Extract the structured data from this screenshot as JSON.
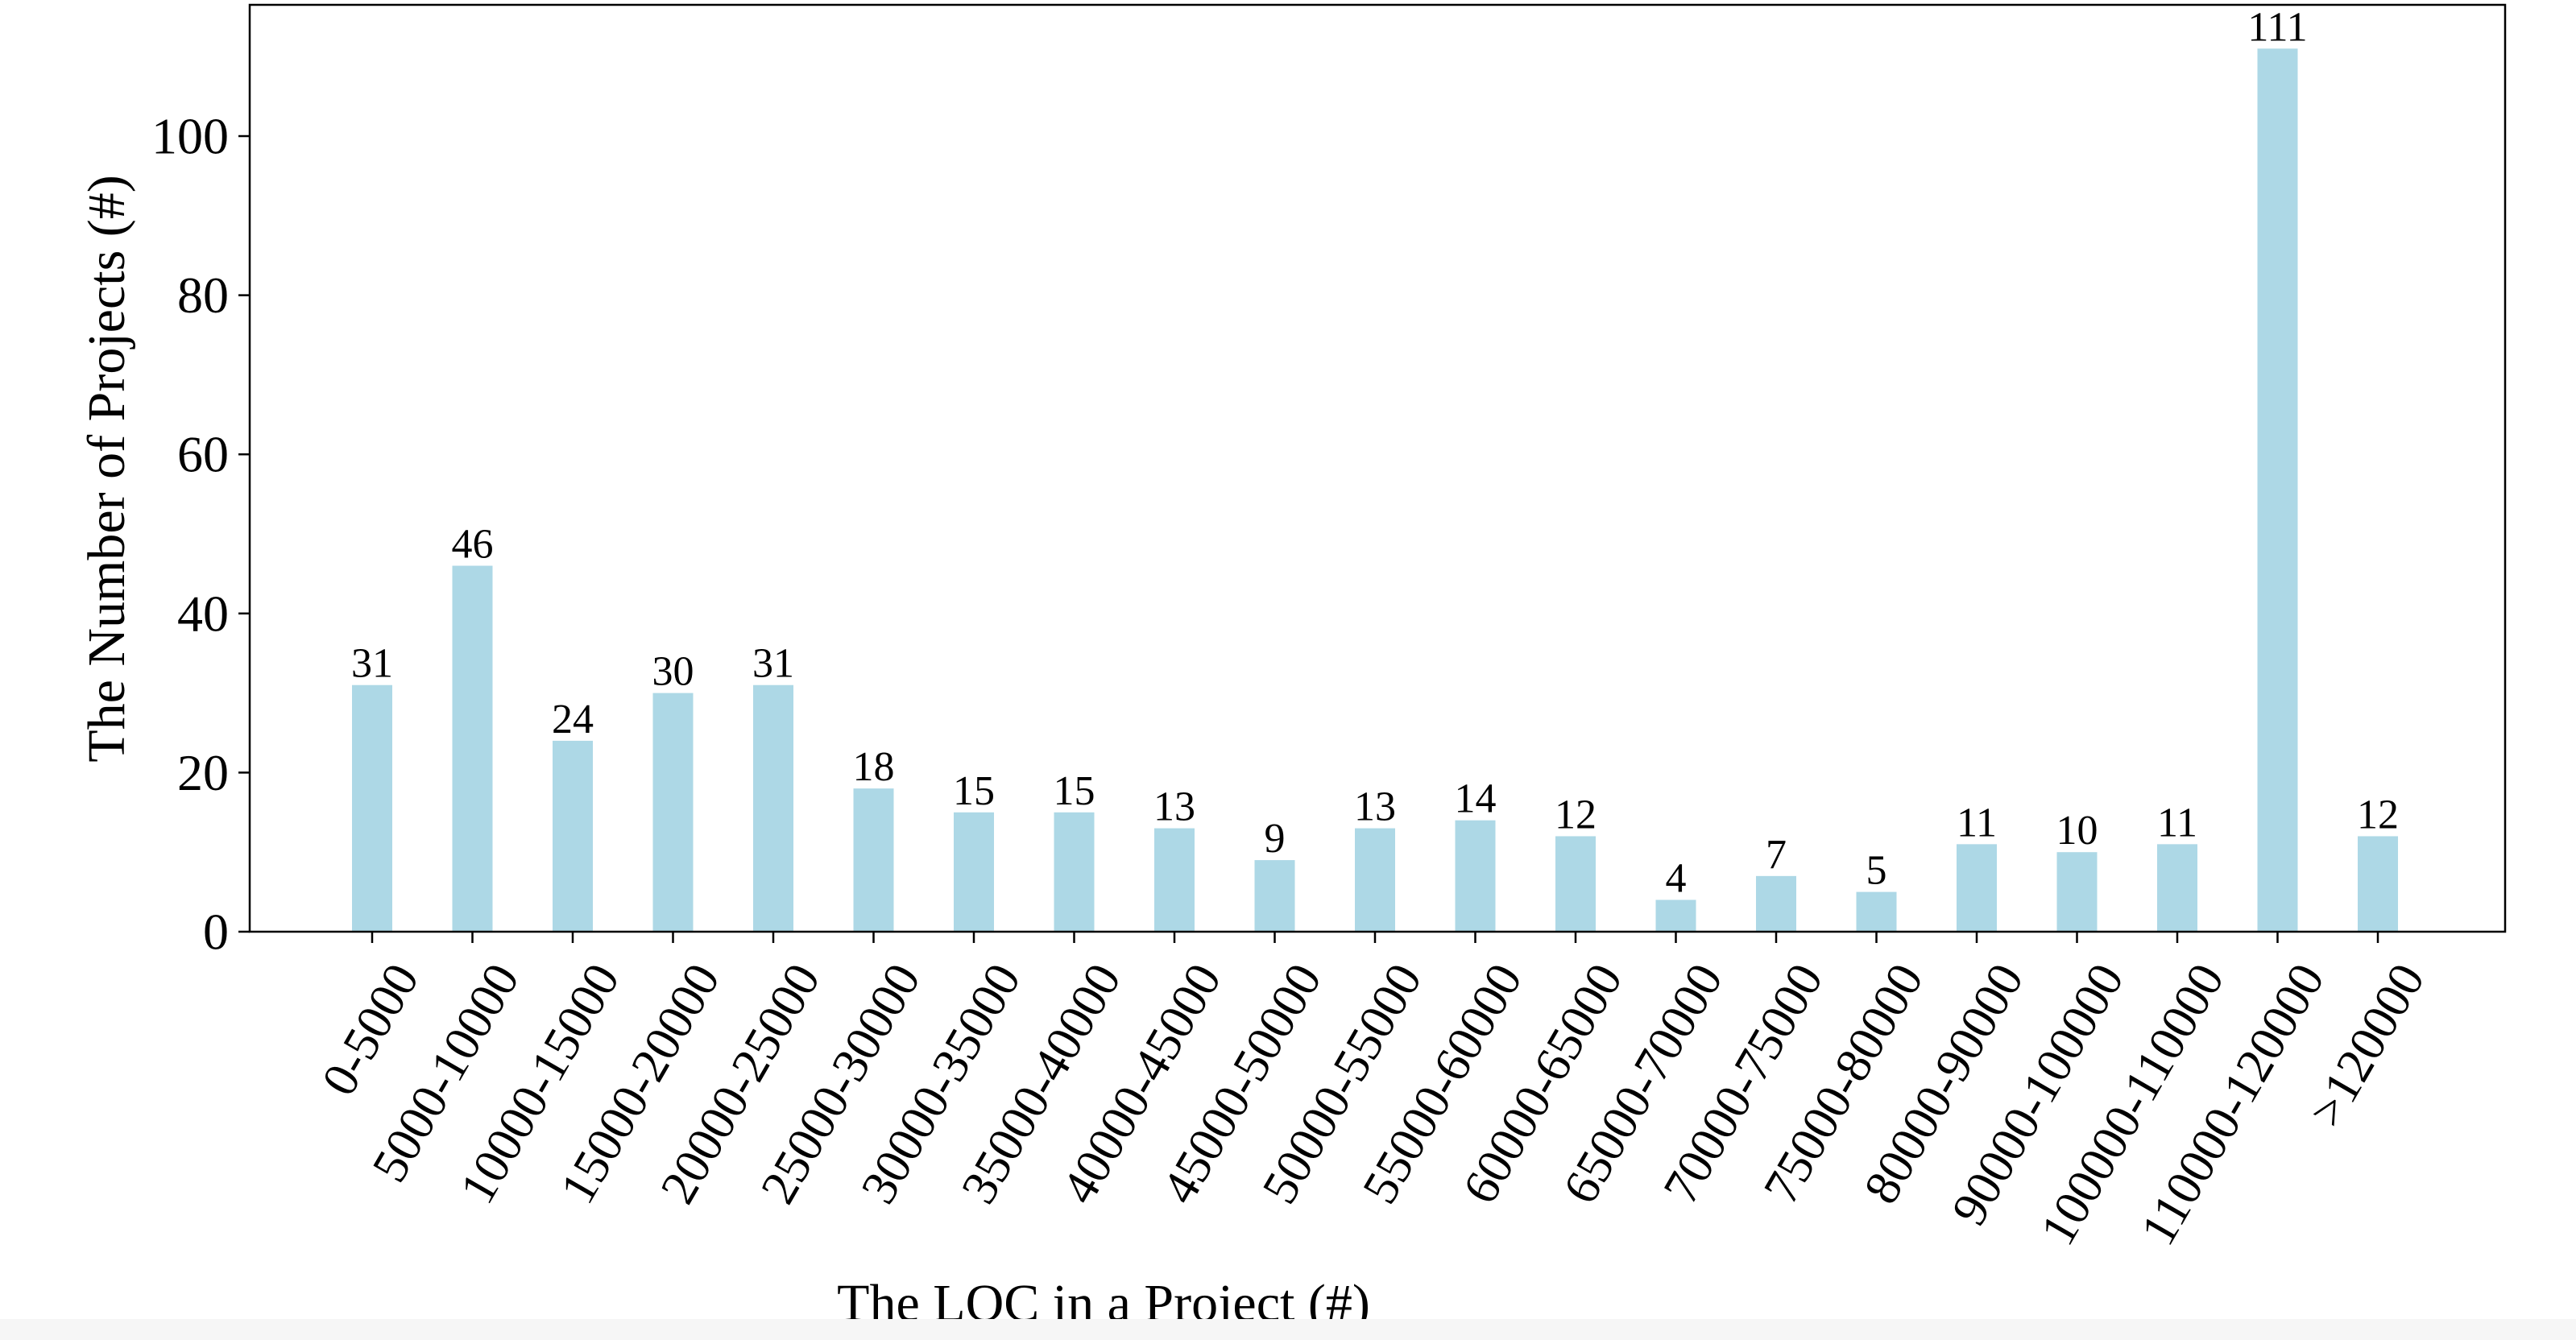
{
  "chart_data": {
    "type": "bar",
    "title": "",
    "xlabel": "The LOC in a Project (#)",
    "ylabel": "The Number of Projects (#)",
    "categories": [
      "0-5000",
      "5000-10000",
      "10000-15000",
      "15000-20000",
      "20000-25000",
      "25000-30000",
      "30000-35000",
      "35000-40000",
      "40000-45000",
      "45000-50000",
      "50000-55000",
      "55000-60000",
      "60000-65000",
      "65000-70000",
      "70000-75000",
      "75000-80000",
      "80000-90000",
      "90000-100000",
      "100000-110000",
      "110000-120000",
      ">120000"
    ],
    "values": [
      31,
      46,
      24,
      30,
      31,
      18,
      15,
      15,
      13,
      9,
      13,
      14,
      12,
      4,
      7,
      5,
      11,
      10,
      11,
      111,
      12
    ],
    "data_labels": [
      "31",
      "46",
      "24",
      "30",
      "31",
      "18",
      "15",
      "15",
      "13",
      "9",
      "13",
      "14",
      "12",
      "4",
      "7",
      "5",
      "11",
      "10",
      "11",
      "111",
      "12"
    ],
    "ylim": [
      0,
      116.5
    ],
    "yticks": [
      0,
      20,
      40,
      60,
      80,
      100
    ],
    "ytick_labels": [
      "0",
      "20",
      "40",
      "60",
      "80",
      "100"
    ],
    "bar_color": "#add8e6",
    "grid": false,
    "legend": "none"
  }
}
